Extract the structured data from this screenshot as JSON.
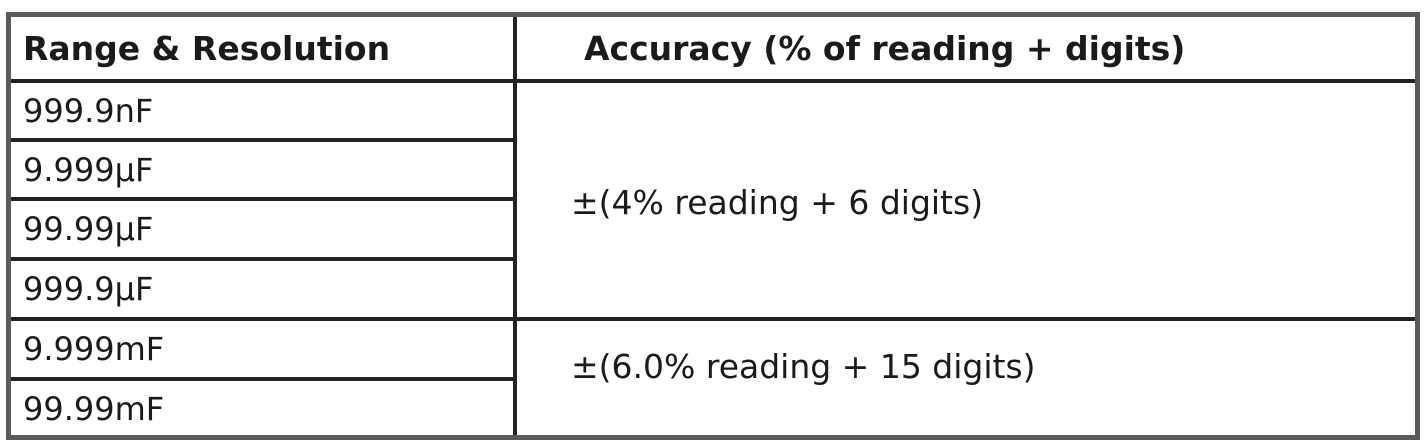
{
  "table": {
    "headers": [
      "Range & Resolution",
      "Accuracy (% of reading + digits)"
    ],
    "ranges": [
      "999.9nF",
      "9.999µF",
      "99.99µF",
      "999.9µF",
      "9.999mF",
      "99.99mF"
    ],
    "accuracy_groups": [
      {
        "text": "±(4% reading + 6 digits)",
        "rows": [
          "999.9nF",
          "9.999µF",
          "99.99µF",
          "999.9µF"
        ]
      },
      {
        "text": "±(6.0% reading + 15 digits)",
        "rows": [
          "9.999mF",
          "99.99mF"
        ]
      }
    ]
  },
  "colors": {
    "outer_border": "#5a5a5a",
    "inner_lines": "#222222"
  }
}
